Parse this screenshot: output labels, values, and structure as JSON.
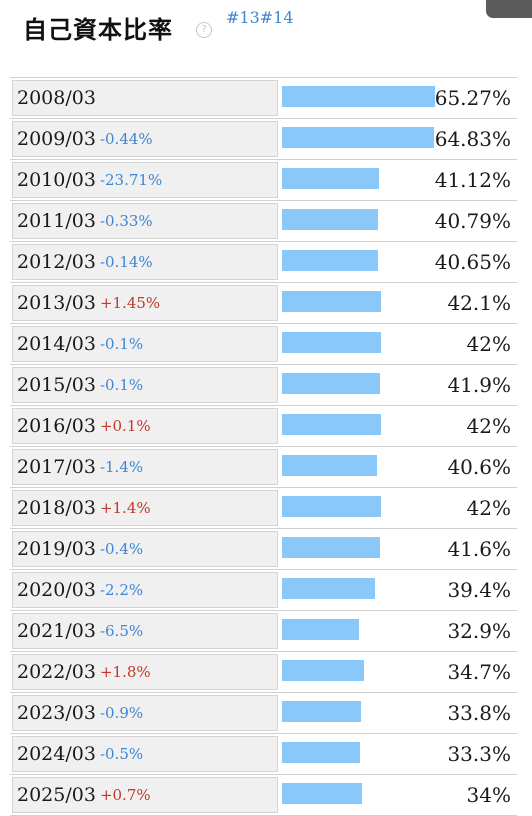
{
  "header": {
    "title": "自己資本比率",
    "help_glyph": "?",
    "tags": [
      "#13",
      "#14"
    ]
  },
  "colors": {
    "bar": "#8ac8fa",
    "negative_change": "#3d86d4",
    "positive_change": "#c0392b",
    "tag": "#3d86d4"
  },
  "chart_data": {
    "type": "bar",
    "title": "自己資本比率",
    "orientation": "horizontal",
    "categories": [
      "2008/03",
      "2009/03",
      "2010/03",
      "2011/03",
      "2012/03",
      "2013/03",
      "2014/03",
      "2015/03",
      "2016/03",
      "2017/03",
      "2018/03",
      "2019/03",
      "2020/03",
      "2021/03",
      "2022/03",
      "2023/03",
      "2024/03",
      "2025/03"
    ],
    "values": [
      65.27,
      64.83,
      41.12,
      40.79,
      40.65,
      42.1,
      42,
      41.9,
      42,
      40.6,
      42,
      41.6,
      39.4,
      32.9,
      34.7,
      33.8,
      33.3,
      34
    ],
    "value_labels": [
      "65.27%",
      "64.83%",
      "41.12%",
      "40.79%",
      "40.65%",
      "42.1%",
      "42%",
      "41.9%",
      "42%",
      "40.6%",
      "42%",
      "41.6%",
      "39.4%",
      "32.9%",
      "34.7%",
      "33.8%",
      "33.3%",
      "34%"
    ],
    "change_labels": [
      "",
      "-0.44%",
      "-23.71%",
      "-0.33%",
      "-0.14%",
      "+1.45%",
      "-0.1%",
      "-0.1%",
      "+0.1%",
      "-1.4%",
      "+1.4%",
      "-0.4%",
      "-2.2%",
      "-6.5%",
      "+1.8%",
      "-0.9%",
      "-0.5%",
      "+0.7%"
    ],
    "xlim": [
      0,
      100
    ]
  }
}
